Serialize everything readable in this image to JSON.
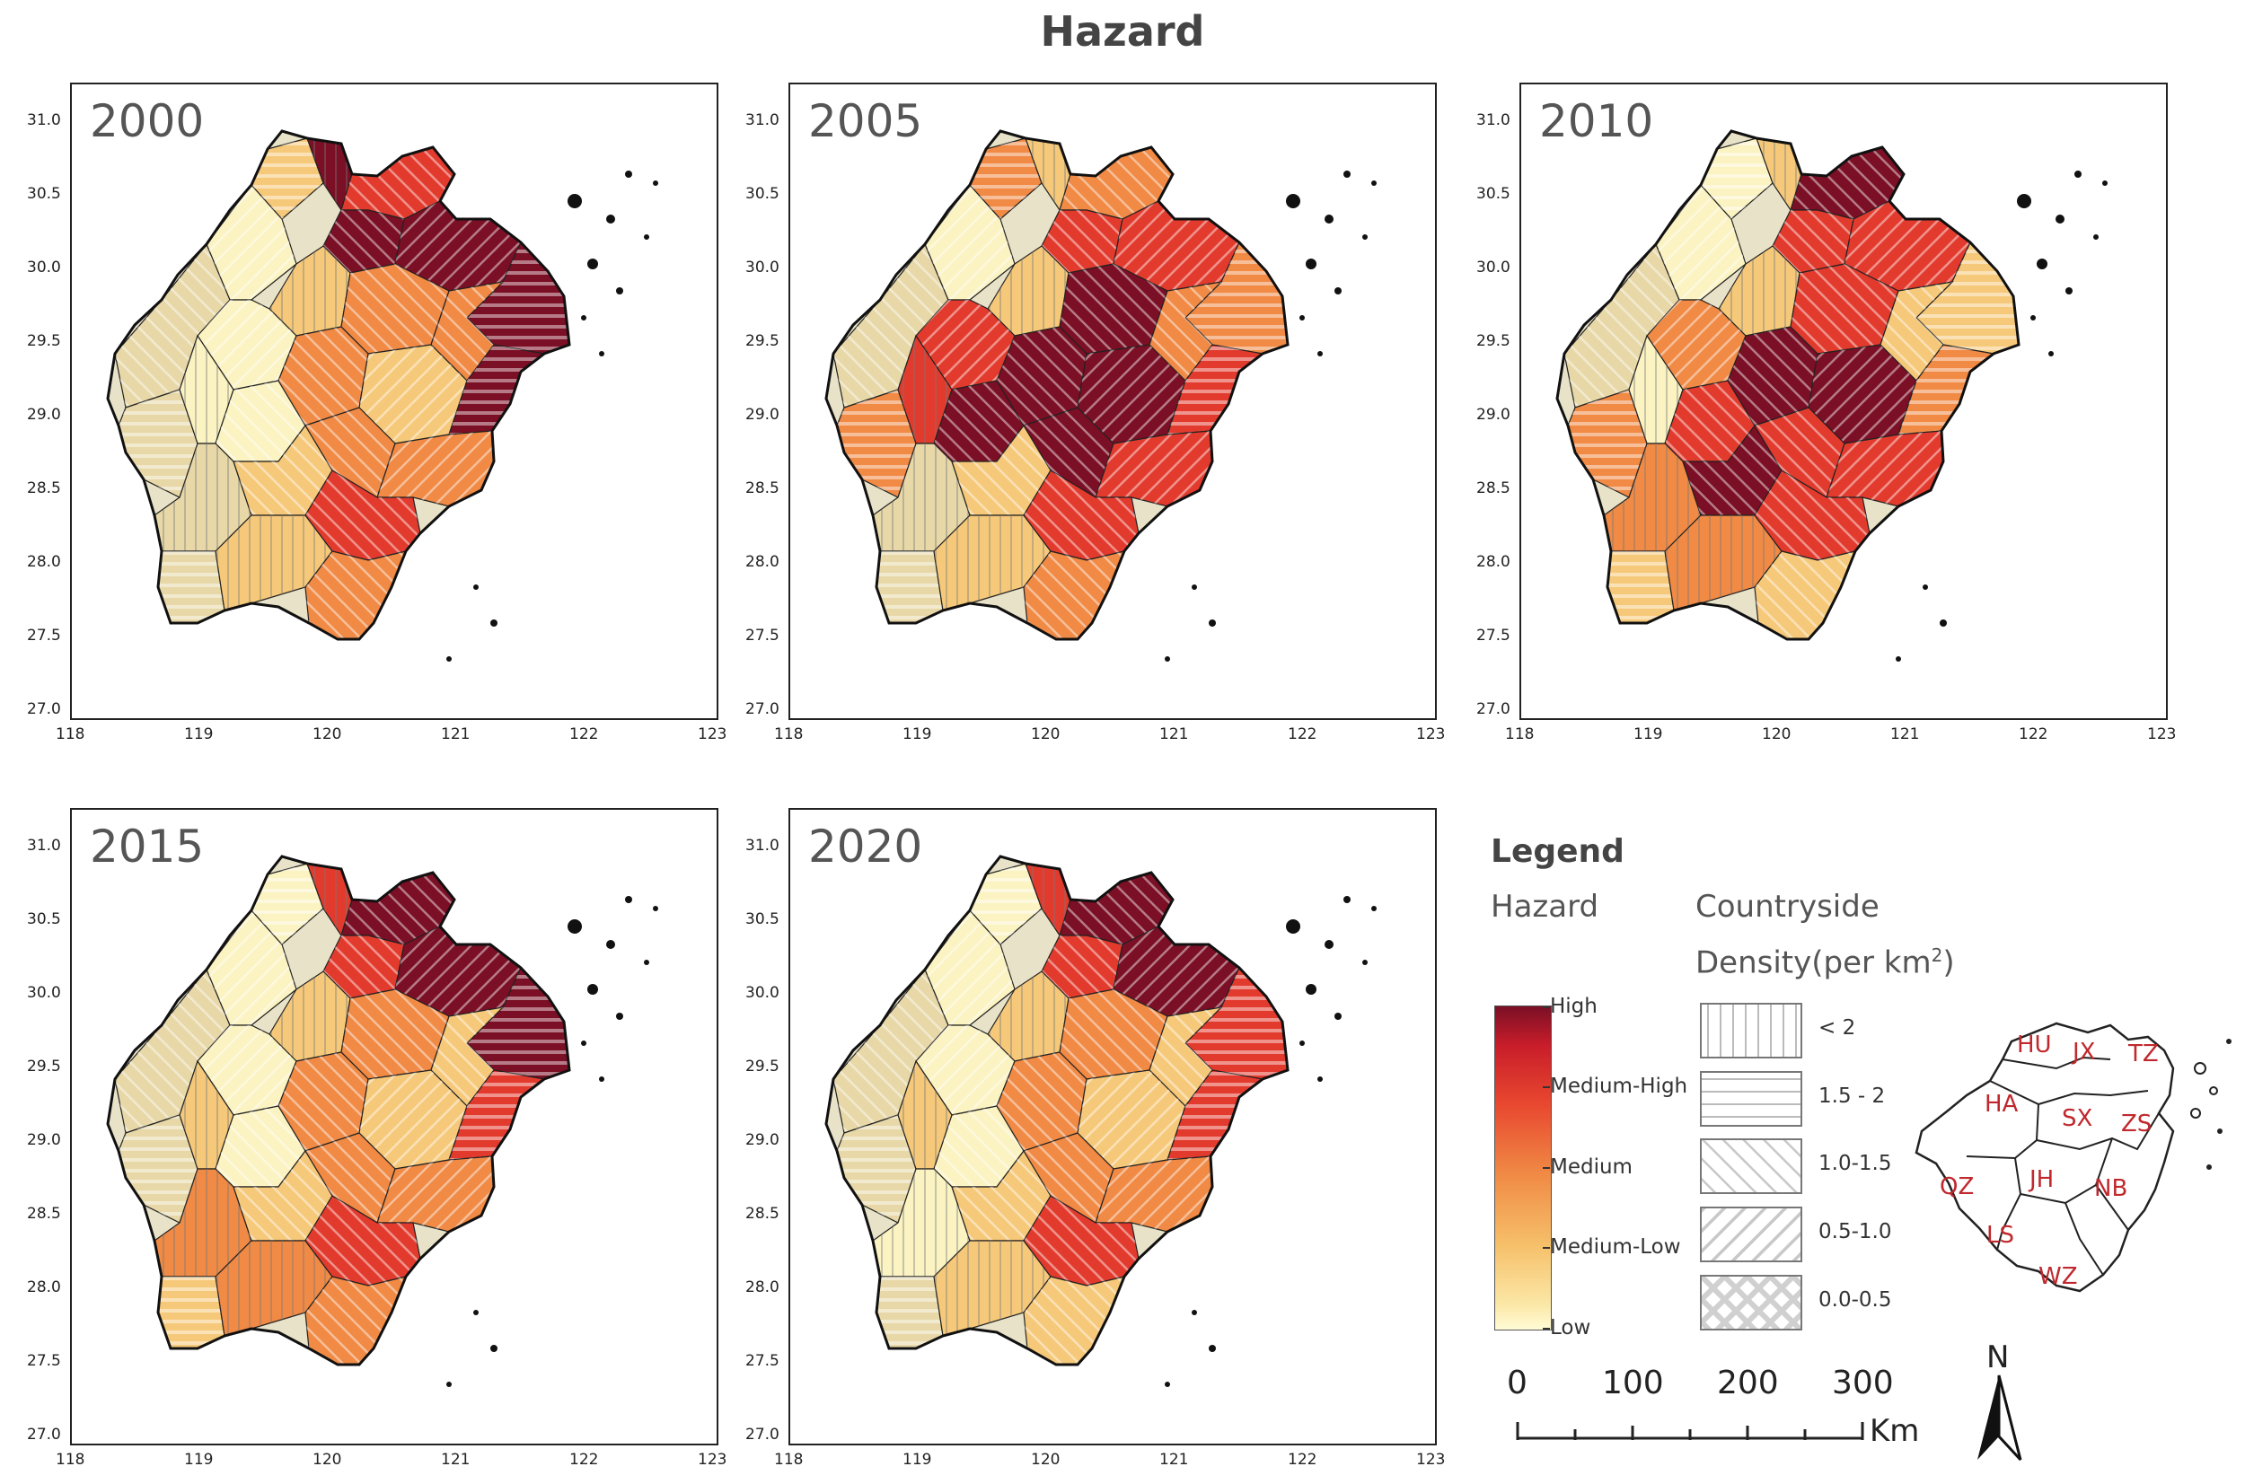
{
  "title": "Hazard",
  "panels": [
    {
      "year": "2000"
    },
    {
      "year": "2005"
    },
    {
      "year": "2010"
    },
    {
      "year": "2015"
    },
    {
      "year": "2020"
    }
  ],
  "axes": {
    "y_ticks": [
      "31.0",
      "30.5",
      "30.0",
      "29.5",
      "29.0",
      "28.5",
      "28.0",
      "27.5",
      "27.0"
    ],
    "x_ticks": [
      "118",
      "119",
      "120",
      "121",
      "122",
      "123"
    ]
  },
  "legend": {
    "title": "Legend",
    "hazard_heading": "Hazard",
    "countryside_heading_1": "Countryside",
    "countryside_heading_2": "Density(per km",
    "countryside_heading_sup": "2",
    "countryside_heading_end": ")",
    "hazard_levels": [
      "High",
      "Medium-High",
      "Medium",
      "Medium-Low",
      "Low"
    ],
    "hazard_colors": [
      "#7a0f25",
      "#e23b2e",
      "#f08a45",
      "#f6c97a",
      "#fbf3c2"
    ],
    "density_classes": [
      "< 2",
      "1.5 - 2",
      "1.0-1.5",
      "0.5-1.0",
      "0.0-0.5"
    ]
  },
  "scale_bar": {
    "numbers": [
      "0",
      "100",
      "200",
      "300"
    ],
    "unit": "Km"
  },
  "north_label": "N",
  "inset_cities": [
    {
      "code": "HU"
    },
    {
      "code": "JX"
    },
    {
      "code": "TZ"
    },
    {
      "code": "HA"
    },
    {
      "code": "SX"
    },
    {
      "code": "ZS"
    },
    {
      "code": "QZ"
    },
    {
      "code": "JH"
    },
    {
      "code": "NB"
    },
    {
      "code": "LS"
    },
    {
      "code": "WZ"
    }
  ],
  "inset_label_color": "#c0282d"
}
